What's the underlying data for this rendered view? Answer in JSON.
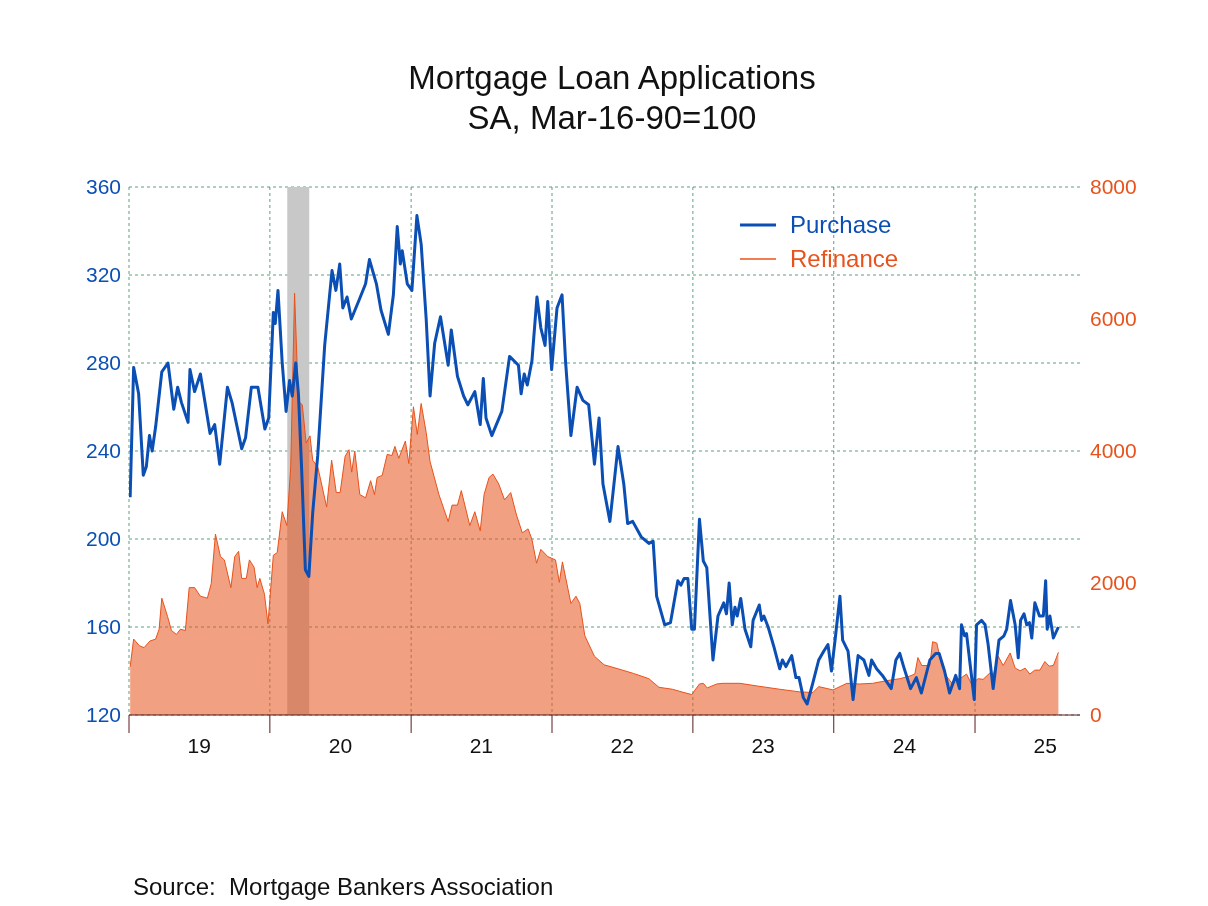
{
  "chart_data": {
    "type": "line",
    "title": "Mortgage Loan Applications",
    "subtitle": "SA, Mar-16-90=100",
    "annotations": [
      "Source:  Mortgage Bankers Association"
    ],
    "legend": "top right",
    "grid": true,
    "xlim": [
      "2019-01-01",
      "2025-09-30"
    ],
    "xticks": [
      {
        "value": "2019-01-01",
        "label": null
      },
      {
        "value": "2019-07-02",
        "label": "19"
      },
      {
        "value": "2020-01-01",
        "label": null
      },
      {
        "value": "2020-07-02",
        "label": "20"
      },
      {
        "value": "2021-01-01",
        "label": null
      },
      {
        "value": "2021-07-02",
        "label": "21"
      },
      {
        "value": "2022-01-01",
        "label": null
      },
      {
        "value": "2022-07-02",
        "label": "22"
      },
      {
        "value": "2023-01-01",
        "label": null
      },
      {
        "value": "2023-07-02",
        "label": "23"
      },
      {
        "value": "2024-01-01",
        "label": null
      },
      {
        "value": "2024-07-02",
        "label": "24"
      },
      {
        "value": "2025-01-01",
        "label": null
      },
      {
        "value": "2025-07-02",
        "label": "25"
      }
    ],
    "ylim": [
      120,
      360
    ],
    "yticks": [
      120,
      160,
      200,
      240,
      280,
      320,
      360
    ],
    "y2lim": [
      0,
      8000
    ],
    "y2ticks": [
      0,
      2000,
      4000,
      6000,
      8000
    ],
    "bands": [
      {
        "axis": "x",
        "from": "2020-02-15",
        "to": "2020-04-12",
        "color": "#c8c8c8"
      }
    ],
    "series": [
      {
        "name": "Purchase",
        "type": "line",
        "color": "#0b4fb5",
        "x": [
          "2019-01-04",
          "2019-01-13",
          "2019-01-26",
          "2019-02-07",
          "2019-02-15",
          "2019-02-23",
          "2019-03-02",
          "2019-03-11",
          "2019-03-27",
          "2019-04-12",
          "2019-04-27",
          "2019-05-07",
          "2019-05-17",
          "2019-06-03",
          "2019-06-08",
          "2019-06-20",
          "2019-07-05",
          "2019-07-30",
          "2019-08-11",
          "2019-08-24",
          "2019-09-13",
          "2019-09-25",
          "2019-10-20",
          "2019-10-30",
          "2019-11-14",
          "2019-12-01",
          "2019-12-19",
          "2019-12-29",
          "2020-01-10",
          "2020-01-15",
          "2020-01-22",
          "2020-02-02",
          "2020-02-12",
          "2020-02-21",
          "2020-02-28",
          "2020-03-08",
          "2020-03-15",
          "2020-03-23",
          "2020-04-02",
          "2020-04-11",
          "2020-04-21",
          "2020-05-04",
          "2020-05-22",
          "2020-06-10",
          "2020-06-20",
          "2020-06-30",
          "2020-07-08",
          "2020-07-19",
          "2020-07-30",
          "2020-08-20",
          "2020-09-05",
          "2020-09-15",
          "2020-10-03",
          "2020-10-15",
          "2020-11-03",
          "2020-11-16",
          "2020-11-26",
          "2020-12-04",
          "2020-12-09",
          "2020-12-22",
          "2021-01-03",
          "2021-01-16",
          "2021-01-27",
          "2021-02-09",
          "2021-02-19",
          "2021-03-03",
          "2021-03-18",
          "2021-04-07",
          "2021-04-15",
          "2021-05-01",
          "2021-05-17",
          "2021-05-28",
          "2021-06-15",
          "2021-06-29",
          "2021-07-07",
          "2021-07-14",
          "2021-07-29",
          "2021-08-24",
          "2021-09-13",
          "2021-10-06",
          "2021-10-13",
          "2021-10-21",
          "2021-10-29",
          "2021-11-10",
          "2021-11-23",
          "2021-12-03",
          "2021-12-14",
          "2021-12-21",
          "2021-12-31",
          "2022-01-14",
          "2022-01-27",
          "2022-02-05",
          "2022-02-19",
          "2022-03-07",
          "2022-03-22",
          "2022-04-06",
          "2022-04-21",
          "2022-05-03",
          "2022-05-13",
          "2022-05-31",
          "2022-06-21",
          "2022-07-06",
          "2022-07-16",
          "2022-07-29",
          "2022-08-20",
          "2022-09-09",
          "2022-09-20",
          "2022-09-29",
          "2022-10-20",
          "2022-11-04",
          "2022-11-23",
          "2022-12-01",
          "2022-12-09",
          "2022-12-19",
          "2022-12-29",
          "2023-01-05",
          "2023-01-18",
          "2023-01-28",
          "2023-02-06",
          "2023-02-22",
          "2023-03-07",
          "2023-03-22",
          "2023-03-29",
          "2023-04-05",
          "2023-04-13",
          "2023-04-20",
          "2023-04-26",
          "2023-05-05",
          "2023-05-16",
          "2023-05-31",
          "2023-06-06",
          "2023-06-22",
          "2023-06-28",
          "2023-07-04",
          "2023-07-15",
          "2023-07-30",
          "2023-08-14",
          "2023-08-21",
          "2023-08-30",
          "2023-09-14",
          "2023-09-25",
          "2023-10-03",
          "2023-10-14",
          "2023-10-24",
          "2023-11-07",
          "2023-11-23",
          "2023-12-06",
          "2023-12-17",
          "2023-12-26",
          "2024-01-05",
          "2024-01-17",
          "2024-01-24",
          "2024-02-07",
          "2024-02-20",
          "2024-03-04",
          "2024-03-19",
          "2024-04-01",
          "2024-04-08",
          "2024-04-21",
          "2024-05-06",
          "2024-05-29",
          "2024-06-10",
          "2024-06-20",
          "2024-06-30",
          "2024-07-18",
          "2024-08-02",
          "2024-08-15",
          "2024-09-06",
          "2024-09-21",
          "2024-09-30",
          "2024-10-14",
          "2024-10-27",
          "2024-11-12",
          "2024-11-22",
          "2024-11-27",
          "2024-12-05",
          "2024-12-10",
          "2024-12-18",
          "2024-12-30",
          "2025-01-05",
          "2025-01-18",
          "2025-01-27",
          "2025-02-04",
          "2025-02-17",
          "2025-03-04",
          "2025-03-17",
          "2025-03-24",
          "2025-04-03",
          "2025-04-15",
          "2025-04-23",
          "2025-04-29",
          "2025-05-08",
          "2025-05-15",
          "2025-05-22",
          "2025-05-28",
          "2025-06-05",
          "2025-06-17",
          "2025-06-27",
          "2025-07-03",
          "2025-07-07",
          "2025-07-14",
          "2025-07-23",
          "2025-08-05"
        ],
        "values": [
          219,
          278,
          266,
          229,
          233,
          247,
          240,
          251,
          276,
          280,
          259,
          269,
          262,
          253,
          277,
          267,
          275,
          248,
          252,
          234,
          269,
          262,
          241,
          246,
          269,
          269,
          250,
          255,
          303,
          298,
          313,
          280,
          258,
          272,
          265,
          280,
          266,
          233,
          186,
          183,
          212,
          238,
          288,
          322,
          313,
          325,
          305,
          310,
          300,
          309,
          316,
          327,
          316,
          304,
          293,
          311,
          342,
          325,
          331,
          316,
          313,
          347,
          334,
          300,
          265,
          289,
          301,
          279,
          295,
          274,
          265,
          261,
          267,
          252,
          273,
          255,
          247,
          258,
          283,
          279,
          266,
          275,
          270,
          281,
          310,
          296,
          288,
          308,
          277,
          305,
          311,
          281,
          247,
          269,
          263,
          261,
          234,
          255,
          225,
          208,
          242,
          225,
          207,
          208,
          201,
          198,
          199,
          174,
          161,
          162,
          181,
          179,
          182,
          182,
          159,
          159,
          209,
          190,
          187,
          145,
          165,
          171,
          166,
          180,
          161,
          169,
          165,
          173,
          159,
          151,
          163,
          170,
          163,
          165,
          160,
          151,
          141,
          145,
          142,
          147,
          137,
          137,
          128,
          125,
          134,
          145,
          149,
          152,
          140,
          155,
          174,
          154,
          149,
          127,
          147,
          145,
          138,
          145,
          141,
          138,
          132,
          145,
          148,
          142,
          132,
          137,
          130,
          145,
          148,
          148,
          140,
          130,
          138,
          132,
          161,
          156,
          157,
          145,
          127,
          161,
          163,
          161,
          152,
          132,
          154,
          156,
          159,
          172,
          161,
          146,
          163,
          166,
          161,
          162,
          155,
          171,
          165,
          165,
          181,
          159,
          165,
          155,
          160
        ]
      },
      {
        "name": "Refinance",
        "type": "area",
        "axis": "y2",
        "color": "#e8521b",
        "x": [
          "2019-01-04",
          "2019-01-13",
          "2019-01-28",
          "2019-02-09",
          "2019-02-24",
          "2019-03-11",
          "2019-03-20",
          "2019-03-27",
          "2019-04-11",
          "2019-04-21",
          "2019-05-04",
          "2019-05-14",
          "2019-05-27",
          "2019-06-06",
          "2019-06-20",
          "2019-07-05",
          "2019-07-23",
          "2019-08-02",
          "2019-08-13",
          "2019-08-26",
          "2019-09-05",
          "2019-09-22",
          "2019-10-02",
          "2019-10-12",
          "2019-10-20",
          "2019-11-01",
          "2019-11-09",
          "2019-11-21",
          "2019-11-29",
          "2019-12-06",
          "2019-12-18",
          "2019-12-27",
          "2020-01-10",
          "2020-01-20",
          "2020-02-02",
          "2020-02-14",
          "2020-02-24",
          "2020-03-05",
          "2020-03-15",
          "2020-03-25",
          "2020-04-04",
          "2020-04-14",
          "2020-04-21",
          "2020-05-04",
          "2020-05-14",
          "2020-05-27",
          "2020-06-09",
          "2020-06-21",
          "2020-07-01",
          "2020-07-14",
          "2020-07-24",
          "2020-07-31",
          "2020-08-08",
          "2020-08-21",
          "2020-09-05",
          "2020-09-18",
          "2020-09-28",
          "2020-10-05",
          "2020-10-18",
          "2020-10-31",
          "2020-11-12",
          "2020-11-20",
          "2020-11-30",
          "2020-12-17",
          "2020-12-26",
          "2021-01-07",
          "2021-01-17",
          "2021-01-27",
          "2021-02-09",
          "2021-02-19",
          "2021-03-14",
          "2021-04-07",
          "2021-04-17",
          "2021-05-01",
          "2021-05-11",
          "2021-06-02",
          "2021-06-15",
          "2021-06-29",
          "2021-07-09",
          "2021-07-22",
          "2021-08-01",
          "2021-08-16",
          "2021-08-31",
          "2021-09-16",
          "2021-10-01",
          "2021-10-16",
          "2021-10-31",
          "2021-11-10",
          "2021-11-22",
          "2021-12-03",
          "2021-12-21",
          "2022-01-10",
          "2022-01-20",
          "2022-01-28",
          "2022-02-19",
          "2022-03-04",
          "2022-03-14",
          "2022-03-27",
          "2022-04-21",
          "2022-05-16",
          "2022-06-21",
          "2022-07-31",
          "2022-09-09",
          "2022-10-05",
          "2022-11-09",
          "2022-12-09",
          "2022-12-29",
          "2023-01-18",
          "2023-01-28",
          "2023-02-07",
          "2023-03-04",
          "2023-03-20",
          "2023-05-03",
          "2023-06-16",
          "2023-08-14",
          "2023-10-05",
          "2023-11-08",
          "2023-11-23",
          "2023-12-30",
          "2024-02-04",
          "2024-03-08",
          "2024-04-11",
          "2024-05-17",
          "2024-06-20",
          "2024-07-16",
          "2024-07-29",
          "2024-08-06",
          "2024-08-16",
          "2024-09-06",
          "2024-09-13",
          "2024-09-24",
          "2024-10-07",
          "2024-10-20",
          "2024-11-04",
          "2024-11-30",
          "2024-12-10",
          "2024-12-23",
          "2025-01-09",
          "2025-01-22",
          "2025-02-09",
          "2025-02-17",
          "2025-03-02",
          "2025-03-15",
          "2025-04-02",
          "2025-04-15",
          "2025-04-28",
          "2025-05-11",
          "2025-05-23",
          "2025-06-05",
          "2025-06-18",
          "2025-07-01",
          "2025-07-12",
          "2025-07-23",
          "2025-08-05"
        ],
        "values": [
          730,
          1150,
          1050,
          1020,
          1120,
          1150,
          1300,
          1770,
          1490,
          1280,
          1220,
          1300,
          1280,
          1930,
          1930,
          1800,
          1770,
          1990,
          2740,
          2400,
          2350,
          1930,
          2400,
          2480,
          2070,
          2070,
          2350,
          2240,
          1930,
          2070,
          1830,
          1380,
          2420,
          2460,
          3080,
          2870,
          3760,
          6390,
          4750,
          4700,
          4120,
          4230,
          3860,
          3760,
          3500,
          3150,
          3860,
          3370,
          3370,
          3920,
          4020,
          3680,
          4000,
          3340,
          3290,
          3550,
          3340,
          3600,
          3630,
          3950,
          3930,
          4070,
          3890,
          4150,
          3810,
          4670,
          4250,
          4720,
          4280,
          3840,
          3340,
          2930,
          3180,
          3180,
          3400,
          2870,
          3080,
          2790,
          3340,
          3600,
          3650,
          3500,
          3260,
          3370,
          3030,
          2760,
          2820,
          2660,
          2300,
          2510,
          2400,
          2350,
          2010,
          2320,
          1690,
          1800,
          1690,
          1200,
          890,
          760,
          700,
          630,
          550,
          420,
          390,
          340,
          310,
          470,
          480,
          410,
          470,
          480,
          480,
          440,
          390,
          350,
          340,
          430,
          380,
          480,
          470,
          480,
          520,
          550,
          590,
          620,
          870,
          750,
          750,
          1110,
          1090,
          750,
          580,
          470,
          580,
          620,
          470,
          550,
          540,
          640,
          600,
          890,
          750,
          940,
          710,
          670,
          710,
          620,
          680,
          680,
          810,
          740,
          750,
          950
        ]
      }
    ]
  }
}
